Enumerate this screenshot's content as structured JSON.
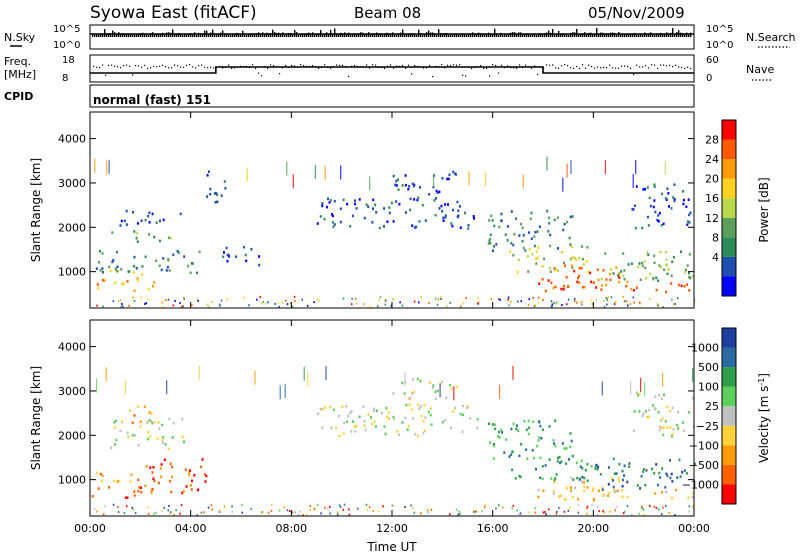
{
  "header": {
    "station": "Syowa East (fitACF)",
    "beam": "Beam 08",
    "date": "05/Nov/2009"
  },
  "top_panels": {
    "nsky_label": "N.Sky",
    "nsky_ticks": [
      "10^5",
      "10^0"
    ],
    "nsearch_label": "N.Search",
    "nsearch_ticks": [
      "10^5",
      "10^0"
    ],
    "freq_label": "Freq.",
    "freq_unit": "[MHz]",
    "freq_ticks": [
      "18",
      "8"
    ],
    "nave_label": "Nave",
    "nave_ticks": [
      "60",
      "0"
    ],
    "cpid_label": "CPID",
    "cpid_text": "normal (fast) 151"
  },
  "chart_data": [
    {
      "type": "heatmap",
      "panel": "power",
      "x_axis": {
        "label": "Time UT",
        "ticks": [
          "00:00",
          "04:00",
          "08:00",
          "12:00",
          "16:00",
          "20:00",
          "00:00"
        ],
        "range_hours": [
          0,
          24
        ]
      },
      "y_axis": {
        "label": "Slant Range [km]",
        "ticks": [
          1000,
          2000,
          3000,
          4000
        ],
        "range": [
          180,
          4600
        ]
      },
      "colorbar": {
        "label": "Power [dB]",
        "ticks": [
          "28",
          "24",
          "20",
          "16",
          "12",
          "8",
          "4"
        ],
        "colors": [
          "#0000ff",
          "#1f4fb0",
          "#2e8b57",
          "#5aa05a",
          "#b8d94a",
          "#ffd21f",
          "#ff9a00",
          "#ff5a00",
          "#ff0000"
        ]
      },
      "regions": [
        {
          "t0": 0.0,
          "t1": 2.6,
          "r0": 600,
          "r1": 900,
          "level": 6
        },
        {
          "t0": 0.0,
          "t1": 2.2,
          "r0": 950,
          "r1": 1100,
          "level": 4
        },
        {
          "t0": 0.2,
          "t1": 4.6,
          "r0": 1000,
          "r1": 1500,
          "level": 2
        },
        {
          "t0": 0.8,
          "t1": 3.2,
          "r0": 1700,
          "r1": 1950,
          "level": 3
        },
        {
          "t0": 1.0,
          "t1": 3.6,
          "r0": 2050,
          "r1": 2400,
          "level": 1
        },
        {
          "t0": 4.5,
          "t1": 5.4,
          "r0": 2500,
          "r1": 3300,
          "level": 1
        },
        {
          "t0": 5.2,
          "t1": 6.7,
          "r0": 1100,
          "r1": 1600,
          "level": 1
        },
        {
          "t0": 9.0,
          "t1": 15.4,
          "r0": 2000,
          "r1": 2700,
          "level": 1
        },
        {
          "t0": 12.0,
          "t1": 14.6,
          "r0": 2700,
          "r1": 3300,
          "level": 1
        },
        {
          "t0": 15.8,
          "t1": 19.2,
          "r0": 1500,
          "r1": 2400,
          "level": 2
        },
        {
          "t0": 16.6,
          "t1": 19.8,
          "r0": 1000,
          "r1": 1600,
          "level": 4
        },
        {
          "t0": 17.8,
          "t1": 21.0,
          "r0": 750,
          "r1": 1200,
          "level": 7
        },
        {
          "t0": 17.5,
          "t1": 24.0,
          "r0": 550,
          "r1": 800,
          "level": 7
        },
        {
          "t0": 20.0,
          "t1": 24.0,
          "r0": 800,
          "r1": 1500,
          "level": 3
        },
        {
          "t0": 21.5,
          "t1": 24.0,
          "r0": 2000,
          "r1": 3000,
          "level": 1
        }
      ]
    },
    {
      "type": "heatmap",
      "panel": "velocity",
      "x_axis": {
        "label": "Time UT",
        "ticks": [
          "00:00",
          "04:00",
          "08:00",
          "12:00",
          "16:00",
          "20:00",
          "00:00"
        ],
        "range_hours": [
          0,
          24
        ]
      },
      "y_axis": {
        "label": "Slant Range [km]",
        "ticks": [
          1000,
          2000,
          3000,
          4000
        ],
        "range": [
          180,
          4600
        ]
      },
      "colorbar": {
        "label": "Velocity",
        "unit": "[m s",
        "unit_sup": "-1",
        "unit_end": "]",
        "ticks": [
          "1000",
          "500",
          "100",
          "25",
          "−25",
          "−100",
          "−500",
          "−1000"
        ],
        "colors": [
          "#ff0000",
          "#ff6000",
          "#ff9a00",
          "#ffd23c",
          "#c0c0c0",
          "#5cd05c",
          "#2e9e4a",
          "#2a6aa0",
          "#1f3fa0"
        ]
      },
      "regions": [
        {
          "t0": 0.0,
          "t1": 2.6,
          "r0": 600,
          "r1": 900,
          "level": 1
        },
        {
          "t0": 0.0,
          "t1": 2.2,
          "r0": 950,
          "r1": 1200,
          "level": 2
        },
        {
          "t0": 2.2,
          "t1": 4.6,
          "r0": 700,
          "r1": 1500,
          "level": 1
        },
        {
          "t0": 0.8,
          "t1": 3.8,
          "r0": 1700,
          "r1": 2400,
          "level": 4
        },
        {
          "t0": 1.5,
          "t1": 2.6,
          "r0": 2300,
          "r1": 2700,
          "level": 2
        },
        {
          "t0": 9.0,
          "t1": 15.4,
          "r0": 2000,
          "r1": 2700,
          "level": 4
        },
        {
          "t0": 12.0,
          "t1": 14.6,
          "r0": 2700,
          "r1": 3300,
          "level": 4
        },
        {
          "t0": 15.8,
          "t1": 19.2,
          "r0": 1500,
          "r1": 2400,
          "level": 6
        },
        {
          "t0": 16.6,
          "t1": 20.0,
          "r0": 1000,
          "r1": 1600,
          "level": 6
        },
        {
          "t0": 17.8,
          "t1": 21.0,
          "r0": 750,
          "r1": 1100,
          "level": 3
        },
        {
          "t0": 17.5,
          "t1": 24.0,
          "r0": 550,
          "r1": 800,
          "level": 3
        },
        {
          "t0": 20.0,
          "t1": 24.0,
          "r0": 800,
          "r1": 1500,
          "level": 7
        },
        {
          "t0": 21.5,
          "t1": 24.0,
          "r0": 2000,
          "r1": 3000,
          "level": 4
        }
      ]
    }
  ]
}
